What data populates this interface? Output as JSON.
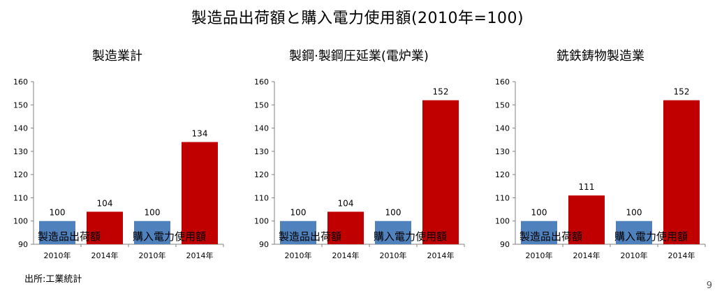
{
  "title": "製造品出荷額と購入電力使用額(2010年=100)",
  "source": "出所:工業統計",
  "page_number": "9",
  "chart_data": [
    {
      "type": "bar",
      "title": "製造業計",
      "categories": [
        "2010年",
        "2014年",
        "2010年",
        "2014年"
      ],
      "groups": [
        {
          "label": "製造品出荷額",
          "categories": [
            "2010年",
            "2014年"
          ]
        },
        {
          "label": "購入電力使用額",
          "categories": [
            "2010年",
            "2014年"
          ]
        }
      ],
      "values": [
        100,
        104,
        100,
        134
      ],
      "bar_colors": [
        "#4f81bd",
        "#c00000",
        "#4f81bd",
        "#c00000"
      ],
      "ylim": [
        90,
        160
      ],
      "yticks": [
        90,
        100,
        110,
        120,
        130,
        140,
        150,
        160
      ],
      "grid": false
    },
    {
      "type": "bar",
      "title": "製鋼·製鋼圧延業(電炉業)",
      "categories": [
        "2010年",
        "2014年",
        "2010年",
        "2014年"
      ],
      "groups": [
        {
          "label": "製造品出荷額",
          "categories": [
            "2010年",
            "2014年"
          ]
        },
        {
          "label": "購入電力使用額",
          "categories": [
            "2010年",
            "2014年"
          ]
        }
      ],
      "values": [
        100,
        104,
        100,
        152
      ],
      "bar_colors": [
        "#4f81bd",
        "#c00000",
        "#4f81bd",
        "#c00000"
      ],
      "ylim": [
        90,
        160
      ],
      "yticks": [
        90,
        100,
        110,
        120,
        130,
        140,
        150,
        160
      ],
      "grid": false
    },
    {
      "type": "bar",
      "title": "銑鉄鋳物製造業",
      "categories": [
        "2010年",
        "2014年",
        "2010年",
        "2014年"
      ],
      "groups": [
        {
          "label": "製造品出荷額",
          "categories": [
            "2010年",
            "2014年"
          ]
        },
        {
          "label": "購入電力使用額",
          "categories": [
            "2010年",
            "2014年"
          ]
        }
      ],
      "values": [
        100,
        111,
        100,
        152
      ],
      "bar_colors": [
        "#4f81bd",
        "#c00000",
        "#4f81bd",
        "#c00000"
      ],
      "ylim": [
        90,
        160
      ],
      "yticks": [
        90,
        100,
        110,
        120,
        130,
        140,
        150,
        160
      ],
      "grid": false
    }
  ]
}
